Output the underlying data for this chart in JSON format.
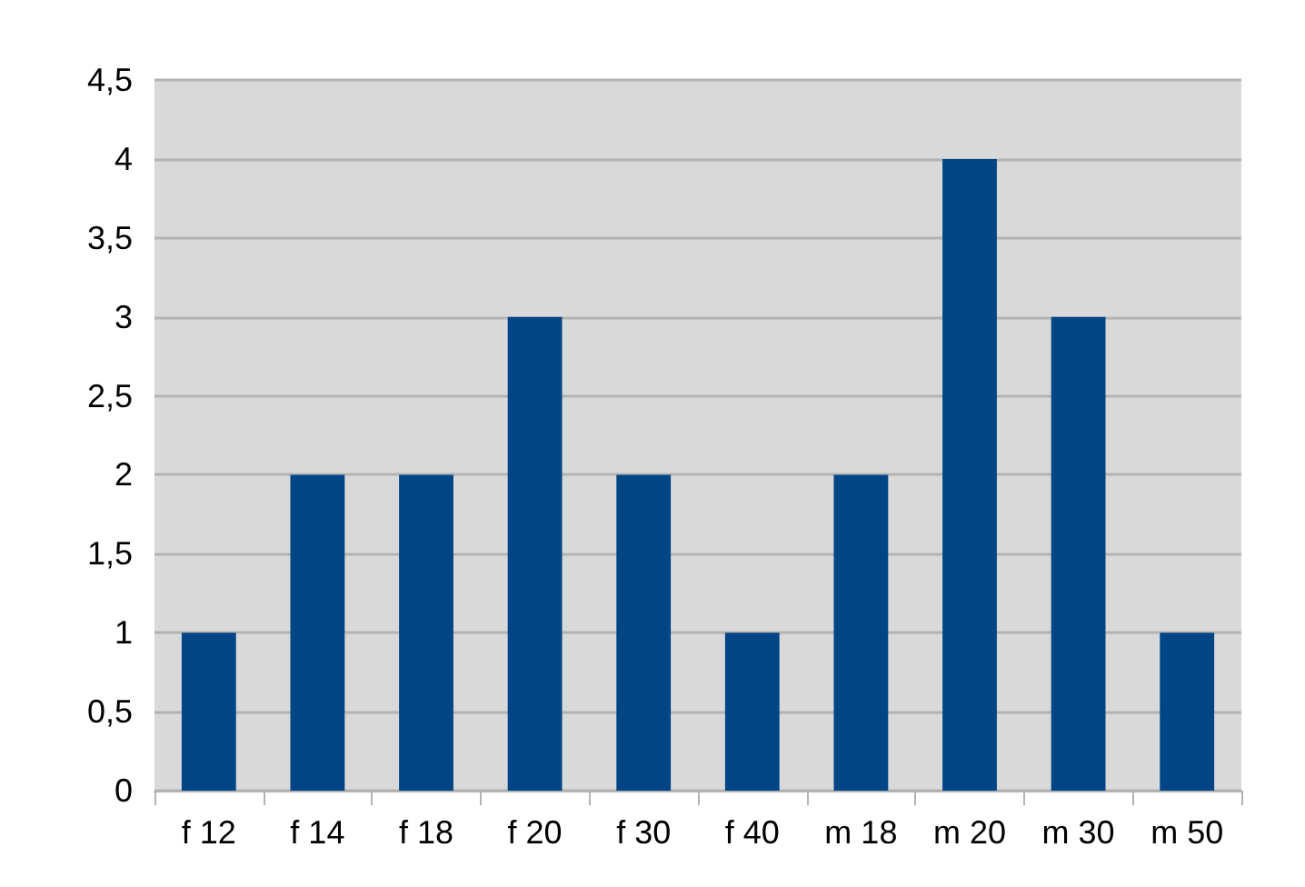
{
  "chart_data": {
    "type": "bar",
    "categories": [
      "f 12",
      "f 14",
      "f 18",
      "f 20",
      "f 30",
      "f 40",
      "m 18",
      "m 20",
      "m 30",
      "m 50"
    ],
    "values": [
      1,
      2,
      2,
      3,
      2,
      1,
      2,
      4,
      3,
      1
    ],
    "color": "#004586",
    "ylim": [
      0,
      4.5
    ],
    "yticks": [
      0,
      {
        "value": 0.5,
        "label": "0,5"
      },
      1,
      {
        "value": 1.5,
        "label": "1,5"
      },
      2,
      {
        "value": 2.5,
        "label": "2,5"
      },
      3,
      {
        "value": 3.5,
        "label": "3,5"
      },
      4,
      {
        "value": 4.5,
        "label": "4,5"
      }
    ],
    "grid": "y"
  }
}
